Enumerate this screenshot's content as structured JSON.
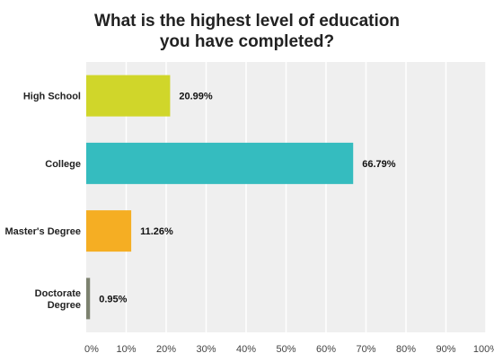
{
  "chart_data": {
    "type": "bar",
    "orientation": "horizontal",
    "title_lines": [
      "What is the highest level of education",
      "you have completed?"
    ],
    "categories": [
      {
        "label_lines": [
          "High School"
        ],
        "value": 20.99,
        "value_label": "20.99%",
        "color": "#d0d62a"
      },
      {
        "label_lines": [
          "College"
        ],
        "value": 66.79,
        "value_label": "66.79%",
        "color": "#35bcbf"
      },
      {
        "label_lines": [
          "Master's Degree"
        ],
        "value": 11.26,
        "value_label": "11.26%",
        "color": "#f5ae23"
      },
      {
        "label_lines": [
          "Doctorate",
          "Degree"
        ],
        "value": 0.95,
        "value_label": "0.95%",
        "color": "#7d8270"
      }
    ],
    "x_ticks": [
      "0%",
      "10%",
      "20%",
      "30%",
      "40%",
      "50%",
      "60%",
      "70%",
      "80%",
      "90%",
      "100%"
    ],
    "xlim": [
      0,
      100
    ],
    "grid": true,
    "plot_background": "#efefef",
    "gridline_color": "#ffffff"
  }
}
